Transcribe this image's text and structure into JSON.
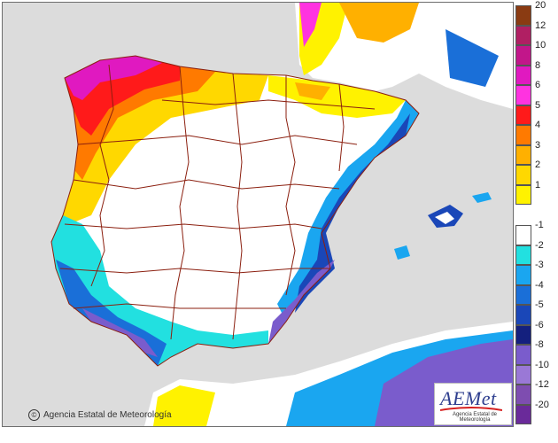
{
  "map": {
    "region": "Iberian Peninsula and Balearic Islands",
    "legend_colors": [
      {
        "label": "20",
        "color": "#8a3b12"
      },
      {
        "label": "12",
        "color": "#b01f63"
      },
      {
        "label": "10",
        "color": "#c2168a"
      },
      {
        "label": "8",
        "color": "#e019c0"
      },
      {
        "label": "6",
        "color": "#ff33e0"
      },
      {
        "label": "5",
        "color": "#ff1a1a"
      },
      {
        "label": "4",
        "color": "#ff7a00"
      },
      {
        "label": "3",
        "color": "#ffb000"
      },
      {
        "label": "2",
        "color": "#ffd800"
      },
      {
        "label": "1",
        "color": "#fff200"
      },
      {
        "label": "-1",
        "color": "#ffffff"
      },
      {
        "label": "-2",
        "color": "#22e0e0"
      },
      {
        "label": "-3",
        "color": "#1aa6f0"
      },
      {
        "label": "-4",
        "color": "#1a6fd8"
      },
      {
        "label": "-5",
        "color": "#1a47b8"
      },
      {
        "label": "-6",
        "color": "#14207e"
      },
      {
        "label": "-8",
        "color": "#7a5ccc"
      },
      {
        "label": "-10",
        "color": "#9a78d6"
      },
      {
        "label": "-12",
        "color": "#7e4db0"
      },
      {
        "label": "-20",
        "color": "#6a2a9a"
      }
    ],
    "land_color": "#ffffff",
    "sea_color": "#dcdcdc",
    "border_color": "#8b1f0f"
  },
  "footer": {
    "copyright_icon": "©",
    "copyright_text": "Agencia Estatal de Meteorología"
  },
  "logo": {
    "name": "AEMet",
    "subtitle": "Agencia Estatal de Meteorología"
  }
}
